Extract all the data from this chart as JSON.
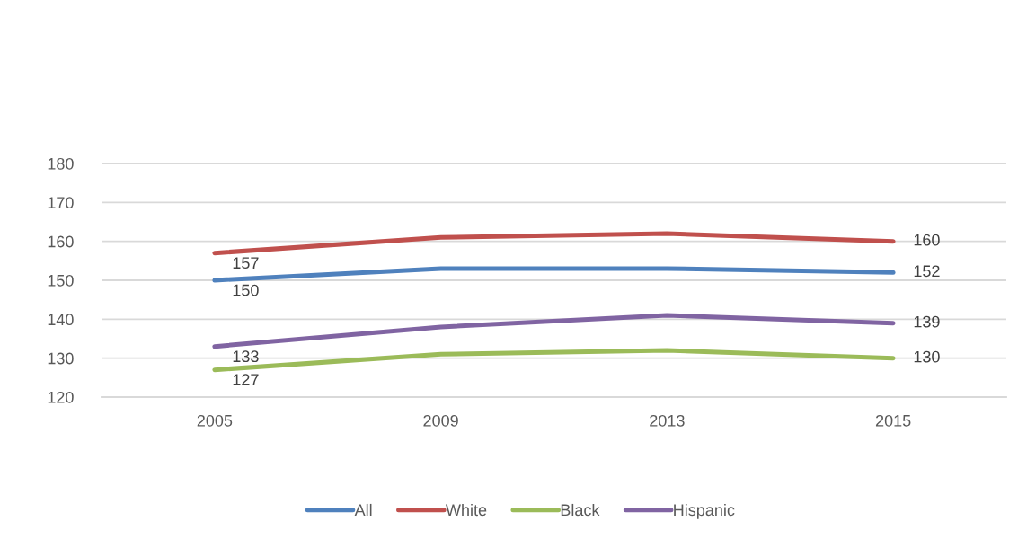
{
  "chart_data": {
    "type": "line",
    "categories": [
      "2005",
      "2009",
      "2013",
      "2015"
    ],
    "ylim": [
      120,
      180
    ],
    "yticks": [
      120,
      130,
      140,
      150,
      160,
      170,
      180
    ],
    "grid": "y",
    "legend": "bottom",
    "line_style": "solid",
    "series": [
      {
        "name": "All",
        "color": "#4f81bd",
        "values": [
          150,
          153,
          153,
          152
        ],
        "value_labels": [
          "150",
          null,
          null,
          "152"
        ]
      },
      {
        "name": "White",
        "color": "#c0504d",
        "values": [
          157,
          161,
          162,
          160
        ],
        "value_labels": [
          "157",
          null,
          null,
          "160"
        ]
      },
      {
        "name": "Black",
        "color": "#9bbb59",
        "values": [
          127,
          131,
          132,
          130
        ],
        "value_labels": [
          "127",
          null,
          null,
          "130"
        ]
      },
      {
        "name": "Hispanic",
        "color": "#8064a2",
        "values": [
          133,
          138,
          141,
          139
        ],
        "value_labels": [
          "133",
          null,
          null,
          "139"
        ]
      }
    ]
  }
}
